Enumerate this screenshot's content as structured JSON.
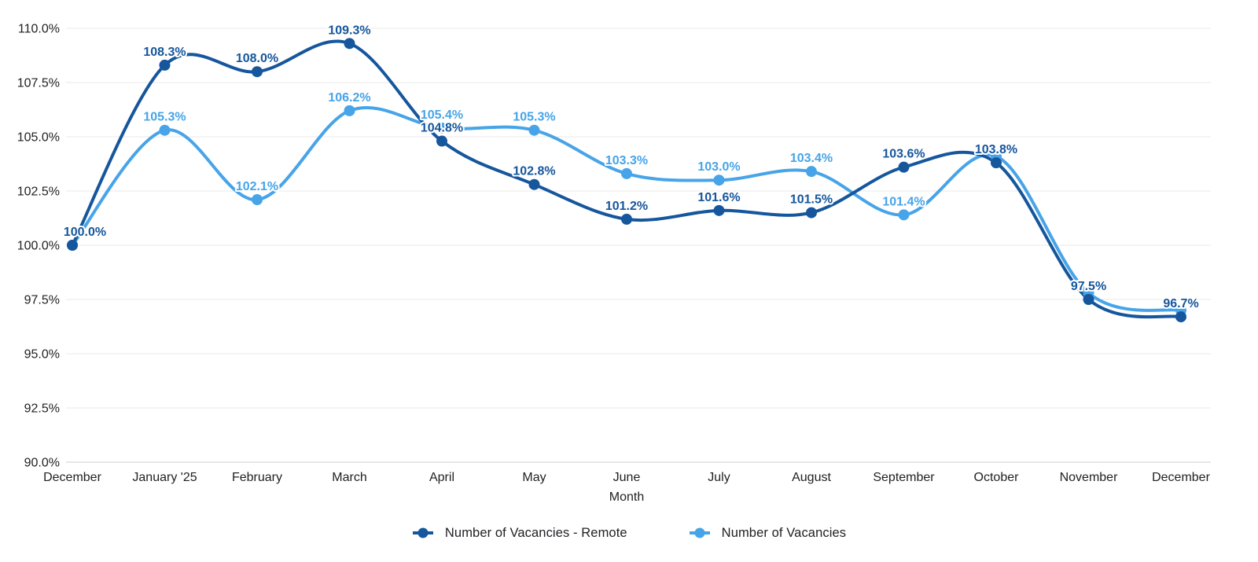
{
  "chart_data": {
    "type": "line",
    "title": "",
    "xlabel": "Month",
    "ylabel": "",
    "grid": true,
    "legend_position": "bottom",
    "curve": "smooth",
    "categories": [
      "December",
      "January '25",
      "February",
      "March",
      "April",
      "May",
      "June",
      "July",
      "August",
      "September",
      "October",
      "November",
      "December"
    ],
    "y_axis": {
      "min": 90,
      "max": 110,
      "tick_step": 2.5,
      "tick_labels": [
        "110.0%",
        "107.5%",
        "105.0%",
        "102.5%",
        "100.0%",
        "97.5%",
        "95.0%",
        "92.5%",
        "90.0%"
      ]
    },
    "series": [
      {
        "name": "Number of Vacancies - Remote",
        "color": "#15569c",
        "values": [
          100.0,
          108.3,
          108.0,
          109.3,
          104.8,
          102.8,
          101.2,
          101.6,
          101.5,
          103.6,
          103.8,
          97.5,
          96.7
        ],
        "point_labels": [
          "100.0%",
          "108.3%",
          "108.0%",
          "109.3%",
          "104.8%",
          "102.8%",
          "101.2%",
          "101.6%",
          "101.5%",
          "103.6%",
          "103.8%",
          "97.5%",
          "96.7%"
        ]
      },
      {
        "name": "Number of Vacancies",
        "color": "#47a4e8",
        "values": [
          100.0,
          105.3,
          102.1,
          106.2,
          105.4,
          105.3,
          103.3,
          103.0,
          103.4,
          101.4,
          104.1,
          97.8,
          97.0
        ],
        "point_labels": [
          "",
          "105.3%",
          "102.1%",
          "106.2%",
          "105.4%",
          "105.3%",
          "103.3%",
          "103.0%",
          "103.4%",
          "101.4%",
          "",
          "",
          ""
        ]
      }
    ]
  }
}
